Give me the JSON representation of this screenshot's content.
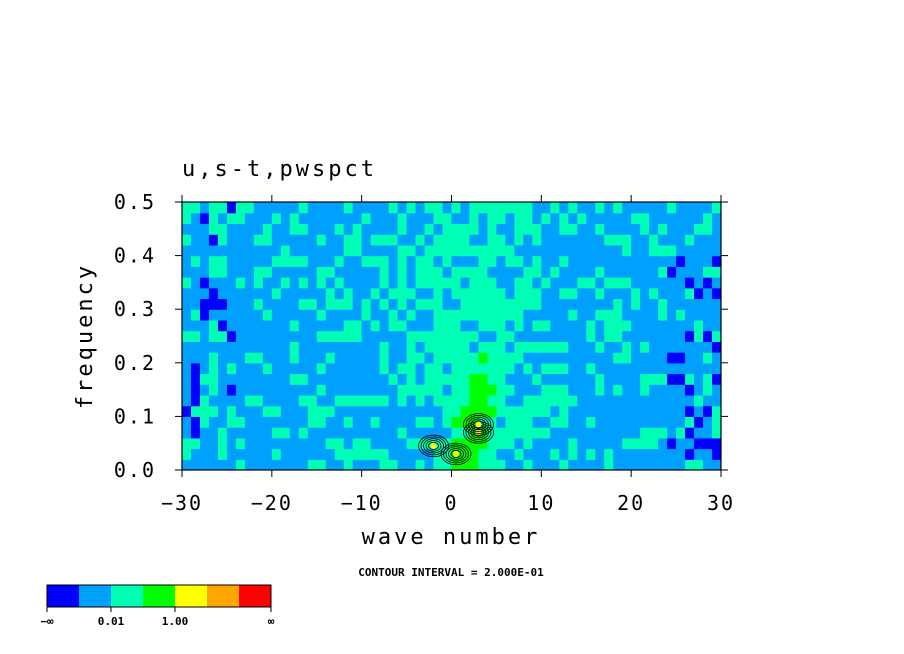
{
  "chart_data": {
    "type": "heatmap",
    "title": "u,s-t,pwspct",
    "xlabel": "wave number",
    "ylabel": "frequency",
    "xlim": [
      -30,
      30
    ],
    "ylim": [
      0.0,
      0.5
    ],
    "x_ticks": [
      "−30",
      "−20",
      "−10",
      "0",
      "10",
      "20",
      "30"
    ],
    "y_ticks": [
      "0.0",
      "0.1",
      "0.2",
      "0.3",
      "0.4",
      "0.5"
    ],
    "note": "CONTOUR INTERVAL = 2.000E-01",
    "colorbar": {
      "colors": [
        "#0000ff",
        "#00a0ff",
        "#00ffb4",
        "#00ff00",
        "#ffff00",
        "#ffa500",
        "#ff0000"
      ],
      "labels": [
        "−∞",
        "0.01",
        "1.00",
        "∞"
      ]
    },
    "dominant_color": "#00a0ff",
    "features": [
      {
        "kind": "core",
        "x": 0.5,
        "y": 0.03
      },
      {
        "kind": "core",
        "x": -2.0,
        "y": 0.045
      },
      {
        "kind": "core",
        "x": 3.0,
        "y": 0.07
      },
      {
        "kind": "core",
        "x": 3.0,
        "y": 0.085
      }
    ]
  }
}
